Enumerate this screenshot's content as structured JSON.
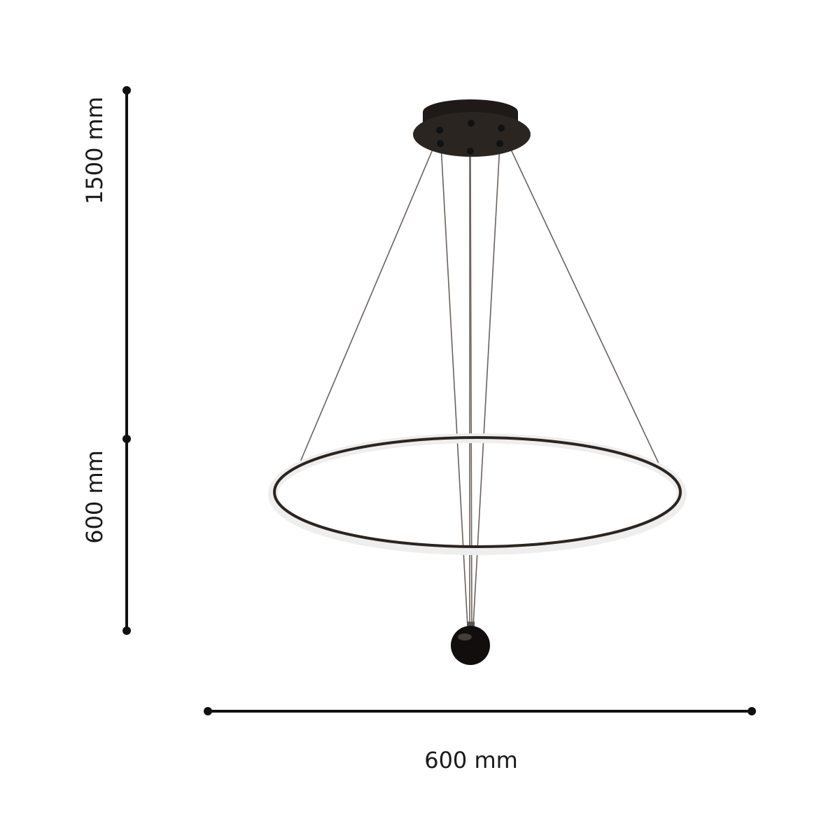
{
  "dimensions": {
    "cable_length": "1500 mm",
    "ring_drop": "600 mm",
    "diameter": "600 mm"
  },
  "colors": {
    "line": "#111111",
    "fixture": "#2b2522",
    "ring_glow": "#f4f4f4"
  }
}
